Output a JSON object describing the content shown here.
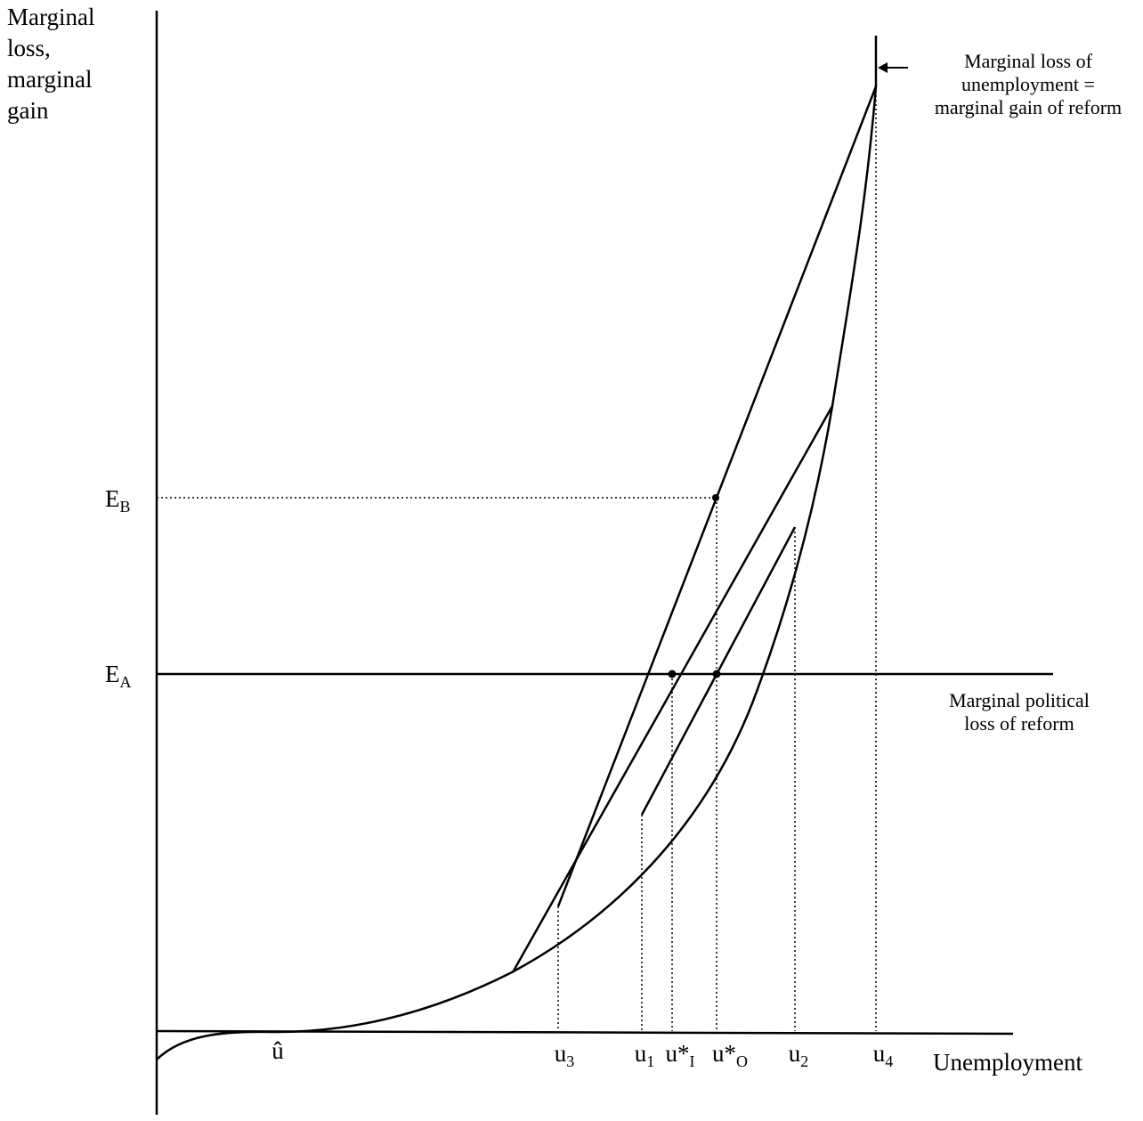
{
  "axes": {
    "y_label_lines": [
      "Marginal",
      "loss,",
      "marginal",
      "gain"
    ],
    "x_label": "Unemployment"
  },
  "y_levels": {
    "EB": {
      "base": "E",
      "sub": "B"
    },
    "EA": {
      "base": "E",
      "sub": "A"
    }
  },
  "x_ticks": [
    {
      "id": "uhat",
      "base": "û",
      "sub": ""
    },
    {
      "id": "u3",
      "base": "u",
      "sub": "3"
    },
    {
      "id": "u1",
      "base": "u",
      "sub": "1"
    },
    {
      "id": "ustarI",
      "base": "u*",
      "sub": "I"
    },
    {
      "id": "ustarO",
      "base": "u*",
      "sub": "O"
    },
    {
      "id": "u2",
      "base": "u",
      "sub": "2"
    },
    {
      "id": "u4",
      "base": "u",
      "sub": "4"
    }
  ],
  "annotations": {
    "marginal_gain": [
      "Marginal loss of",
      "unemployment =",
      "marginal gain of reform"
    ],
    "political_loss": [
      "Marginal political",
      "loss of reform"
    ]
  }
}
